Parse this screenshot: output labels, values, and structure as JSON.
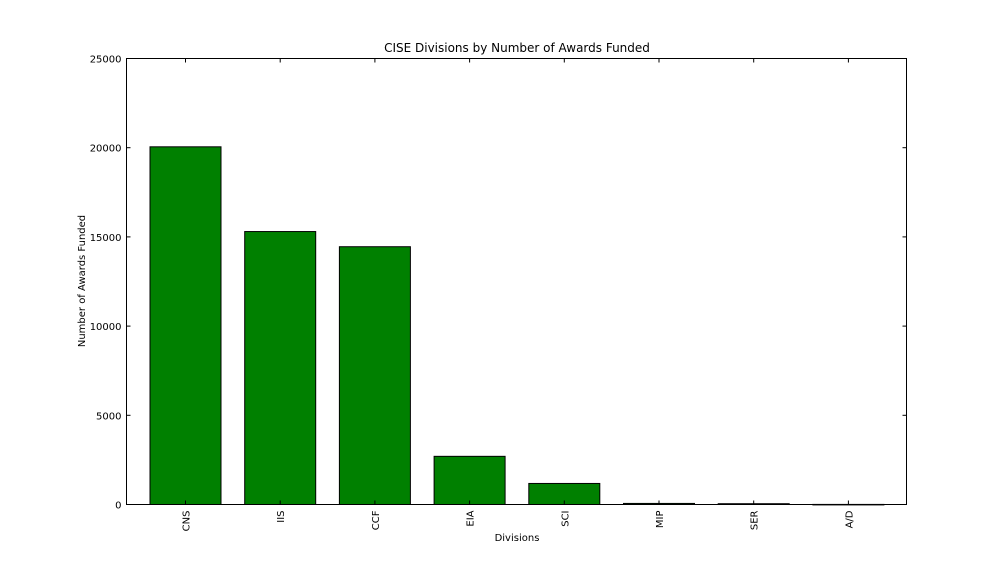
{
  "chart_data": {
    "type": "bar",
    "title": "CISE Divisions by Number of Awards Funded",
    "xlabel": "Divisions",
    "ylabel": "Number of Awards Funded",
    "categories": [
      "CNS",
      "IIS",
      "CCF",
      "EIA",
      "SCI",
      "MIP",
      "SER",
      "A/D"
    ],
    "values": [
      20050,
      15300,
      14450,
      2700,
      1180,
      60,
      45,
      5
    ],
    "ylim": [
      0,
      25000
    ],
    "yticks": [
      0,
      5000,
      10000,
      15000,
      20000,
      25000
    ],
    "bar_color": "#008000",
    "edge_color": "#000000",
    "grid": false
  }
}
